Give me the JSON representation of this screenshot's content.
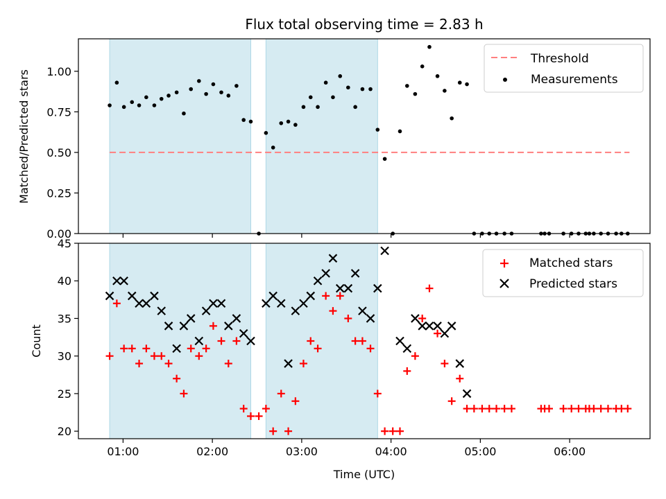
{
  "chart_data": [
    {
      "type": "scatter",
      "title": "Flux total observing time = 2.83 h",
      "xlabel": "",
      "ylabel": "Matched/Predicted stars",
      "ylim": [
        0,
        1.2
      ],
      "yticks": [
        "0.00",
        "0.25",
        "0.50",
        "0.75",
        "1.00"
      ],
      "xlim_hours": [
        0.5,
        6.9
      ],
      "shaded_spans_hours": [
        [
          0.85,
          2.43
        ],
        [
          2.6,
          3.85
        ]
      ],
      "threshold": {
        "name": "Threshold",
        "y": 0.5,
        "x_range_hours": [
          0.85,
          6.67
        ],
        "color": "#ff7f7f"
      },
      "legend_position": "upper right",
      "series": [
        {
          "name": "Measurements",
          "marker": "dot",
          "color": "#000000",
          "points": [
            [
              0.85,
              0.79
            ],
            [
              0.93,
              0.93
            ],
            [
              1.01,
              0.78
            ],
            [
              1.1,
              0.81
            ],
            [
              1.18,
              0.79
            ],
            [
              1.26,
              0.84
            ],
            [
              1.35,
              0.79
            ],
            [
              1.43,
              0.83
            ],
            [
              1.51,
              0.85
            ],
            [
              1.6,
              0.87
            ],
            [
              1.68,
              0.74
            ],
            [
              1.76,
              0.89
            ],
            [
              1.85,
              0.94
            ],
            [
              1.93,
              0.86
            ],
            [
              2.01,
              0.92
            ],
            [
              2.1,
              0.87
            ],
            [
              2.18,
              0.85
            ],
            [
              2.27,
              0.91
            ],
            [
              2.35,
              0.7
            ],
            [
              2.43,
              0.69
            ],
            [
              2.52,
              0.0
            ],
            [
              2.6,
              0.62
            ],
            [
              2.68,
              0.53
            ],
            [
              2.77,
              0.68
            ],
            [
              2.85,
              0.69
            ],
            [
              2.93,
              0.67
            ],
            [
              3.02,
              0.78
            ],
            [
              3.1,
              0.84
            ],
            [
              3.18,
              0.78
            ],
            [
              3.27,
              0.93
            ],
            [
              3.35,
              0.84
            ],
            [
              3.43,
              0.97
            ],
            [
              3.52,
              0.9
            ],
            [
              3.6,
              0.78
            ],
            [
              3.68,
              0.89
            ],
            [
              3.77,
              0.89
            ],
            [
              3.85,
              0.64
            ],
            [
              3.93,
              0.46
            ],
            [
              4.02,
              0.0
            ],
            [
              4.1,
              0.63
            ],
            [
              4.18,
              0.91
            ],
            [
              4.27,
              0.86
            ],
            [
              4.35,
              1.03
            ],
            [
              4.43,
              1.15
            ],
            [
              4.52,
              0.97
            ],
            [
              4.6,
              0.88
            ],
            [
              4.68,
              0.71
            ],
            [
              4.77,
              0.93
            ],
            [
              4.85,
              0.92
            ],
            [
              4.93,
              0.0
            ],
            [
              5.02,
              0.0
            ],
            [
              5.1,
              0.0
            ],
            [
              5.18,
              0.0
            ],
            [
              5.27,
              0.0
            ],
            [
              5.35,
              0.0
            ],
            [
              5.68,
              0.0
            ],
            [
              5.72,
              0.0
            ],
            [
              5.77,
              0.0
            ],
            [
              5.93,
              0.0
            ],
            [
              6.02,
              0.0
            ],
            [
              6.1,
              0.0
            ],
            [
              6.18,
              0.0
            ],
            [
              6.22,
              0.0
            ],
            [
              6.27,
              0.0
            ],
            [
              6.35,
              0.0
            ],
            [
              6.43,
              0.0
            ],
            [
              6.52,
              0.0
            ],
            [
              6.58,
              0.0
            ],
            [
              6.65,
              0.0
            ]
          ]
        }
      ]
    },
    {
      "type": "scatter",
      "title": "",
      "xlabel": "Time (UTC)",
      "ylabel": "Count",
      "ylim": [
        19,
        45
      ],
      "yticks": [
        "20",
        "25",
        "30",
        "35",
        "40",
        "45"
      ],
      "xlim_hours": [
        0.5,
        6.9
      ],
      "xticks": [
        "01:00",
        "02:00",
        "03:00",
        "04:00",
        "05:00",
        "06:00"
      ],
      "shaded_spans_hours": [
        [
          0.85,
          2.43
        ],
        [
          2.6,
          3.85
        ]
      ],
      "legend_position": "upper right",
      "series": [
        {
          "name": "Matched stars",
          "marker": "plus",
          "color": "#ff0000",
          "points": [
            [
              0.85,
              30
            ],
            [
              0.93,
              37
            ],
            [
              1.01,
              31
            ],
            [
              1.1,
              31
            ],
            [
              1.18,
              29
            ],
            [
              1.26,
              31
            ],
            [
              1.35,
              30
            ],
            [
              1.43,
              30
            ],
            [
              1.51,
              29
            ],
            [
              1.6,
              27
            ],
            [
              1.68,
              25
            ],
            [
              1.76,
              31
            ],
            [
              1.85,
              30
            ],
            [
              1.93,
              31
            ],
            [
              2.01,
              34
            ],
            [
              2.1,
              32
            ],
            [
              2.18,
              29
            ],
            [
              2.27,
              32
            ],
            [
              2.35,
              23
            ],
            [
              2.43,
              22
            ],
            [
              2.52,
              22
            ],
            [
              2.6,
              23
            ],
            [
              2.68,
              20
            ],
            [
              2.77,
              25
            ],
            [
              2.85,
              20
            ],
            [
              2.93,
              24
            ],
            [
              3.02,
              29
            ],
            [
              3.1,
              32
            ],
            [
              3.18,
              31
            ],
            [
              3.27,
              38
            ],
            [
              3.35,
              36
            ],
            [
              3.43,
              38
            ],
            [
              3.52,
              35
            ],
            [
              3.6,
              32
            ],
            [
              3.68,
              32
            ],
            [
              3.77,
              31
            ],
            [
              3.85,
              25
            ],
            [
              3.93,
              20
            ],
            [
              4.02,
              20
            ],
            [
              4.1,
              20
            ],
            [
              4.18,
              28
            ],
            [
              4.27,
              30
            ],
            [
              4.35,
              35
            ],
            [
              4.43,
              39
            ],
            [
              4.52,
              33
            ],
            [
              4.6,
              29
            ],
            [
              4.68,
              24
            ],
            [
              4.77,
              27
            ],
            [
              4.85,
              23
            ],
            [
              4.93,
              23
            ],
            [
              5.02,
              23
            ],
            [
              5.1,
              23
            ],
            [
              5.18,
              23
            ],
            [
              5.27,
              23
            ],
            [
              5.35,
              23
            ],
            [
              5.68,
              23
            ],
            [
              5.72,
              23
            ],
            [
              5.77,
              23
            ],
            [
              5.93,
              23
            ],
            [
              6.02,
              23
            ],
            [
              6.1,
              23
            ],
            [
              6.18,
              23
            ],
            [
              6.22,
              23
            ],
            [
              6.27,
              23
            ],
            [
              6.35,
              23
            ],
            [
              6.43,
              23
            ],
            [
              6.52,
              23
            ],
            [
              6.58,
              23
            ],
            [
              6.65,
              23
            ]
          ]
        },
        {
          "name": "Predicted stars",
          "marker": "x",
          "color": "#000000",
          "points": [
            [
              0.85,
              38
            ],
            [
              0.93,
              40
            ],
            [
              1.01,
              40
            ],
            [
              1.1,
              38
            ],
            [
              1.18,
              37
            ],
            [
              1.26,
              37
            ],
            [
              1.35,
              38
            ],
            [
              1.43,
              36
            ],
            [
              1.51,
              34
            ],
            [
              1.6,
              31
            ],
            [
              1.68,
              34
            ],
            [
              1.76,
              35
            ],
            [
              1.85,
              32
            ],
            [
              1.93,
              36
            ],
            [
              2.01,
              37
            ],
            [
              2.1,
              37
            ],
            [
              2.18,
              34
            ],
            [
              2.27,
              35
            ],
            [
              2.35,
              33
            ],
            [
              2.43,
              32
            ],
            [
              2.6,
              37
            ],
            [
              2.68,
              38
            ],
            [
              2.77,
              37
            ],
            [
              2.85,
              29
            ],
            [
              2.93,
              36
            ],
            [
              3.02,
              37
            ],
            [
              3.1,
              38
            ],
            [
              3.18,
              40
            ],
            [
              3.27,
              41
            ],
            [
              3.35,
              43
            ],
            [
              3.43,
              39
            ],
            [
              3.52,
              39
            ],
            [
              3.6,
              41
            ],
            [
              3.68,
              36
            ],
            [
              3.77,
              35
            ],
            [
              3.85,
              39
            ],
            [
              3.93,
              44
            ],
            [
              4.1,
              32
            ],
            [
              4.18,
              31
            ],
            [
              4.27,
              35
            ],
            [
              4.35,
              34
            ],
            [
              4.43,
              34
            ],
            [
              4.52,
              34
            ],
            [
              4.6,
              33
            ],
            [
              4.68,
              34
            ],
            [
              4.77,
              29
            ],
            [
              4.85,
              25
            ]
          ]
        }
      ]
    }
  ],
  "colors": {
    "shade": "#add8e6",
    "threshold": "#ff7f7f",
    "matched": "#ff0000",
    "predicted": "#000000",
    "measurements": "#000000"
  }
}
